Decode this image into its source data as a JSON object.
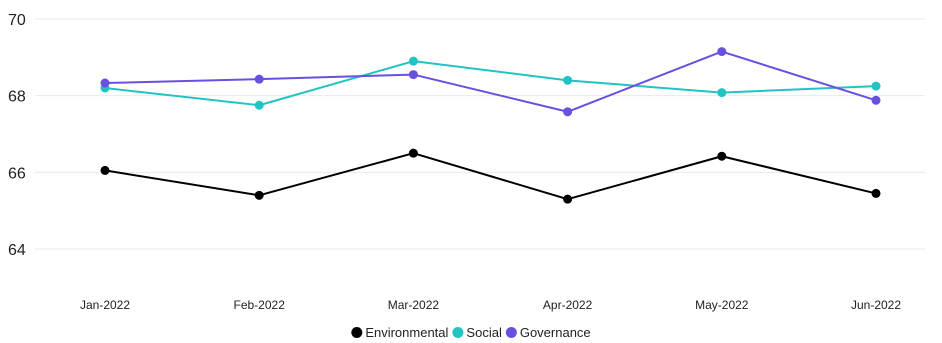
{
  "chart_data": {
    "type": "line",
    "title": "",
    "xlabel": "",
    "ylabel": "",
    "categories": [
      "Jan-2022",
      "Feb-2022",
      "Mar-2022",
      "Apr-2022",
      "May-2022",
      "Jun-2022"
    ],
    "ylim": [
      63,
      70
    ],
    "yticks": [
      64,
      66,
      68,
      70
    ],
    "grid": true,
    "legend_position": "bottom-center",
    "series": [
      {
        "name": "Environmental",
        "color": "#000000",
        "values": [
          66.05,
          65.4,
          66.5,
          65.3,
          66.42,
          65.45
        ]
      },
      {
        "name": "Social",
        "color": "#22c3c3",
        "values": [
          68.2,
          67.75,
          68.9,
          68.4,
          68.08,
          68.25
        ]
      },
      {
        "name": "Governance",
        "color": "#6a4fe0",
        "values": [
          68.33,
          68.43,
          68.55,
          67.58,
          69.15,
          67.88
        ]
      }
    ]
  }
}
